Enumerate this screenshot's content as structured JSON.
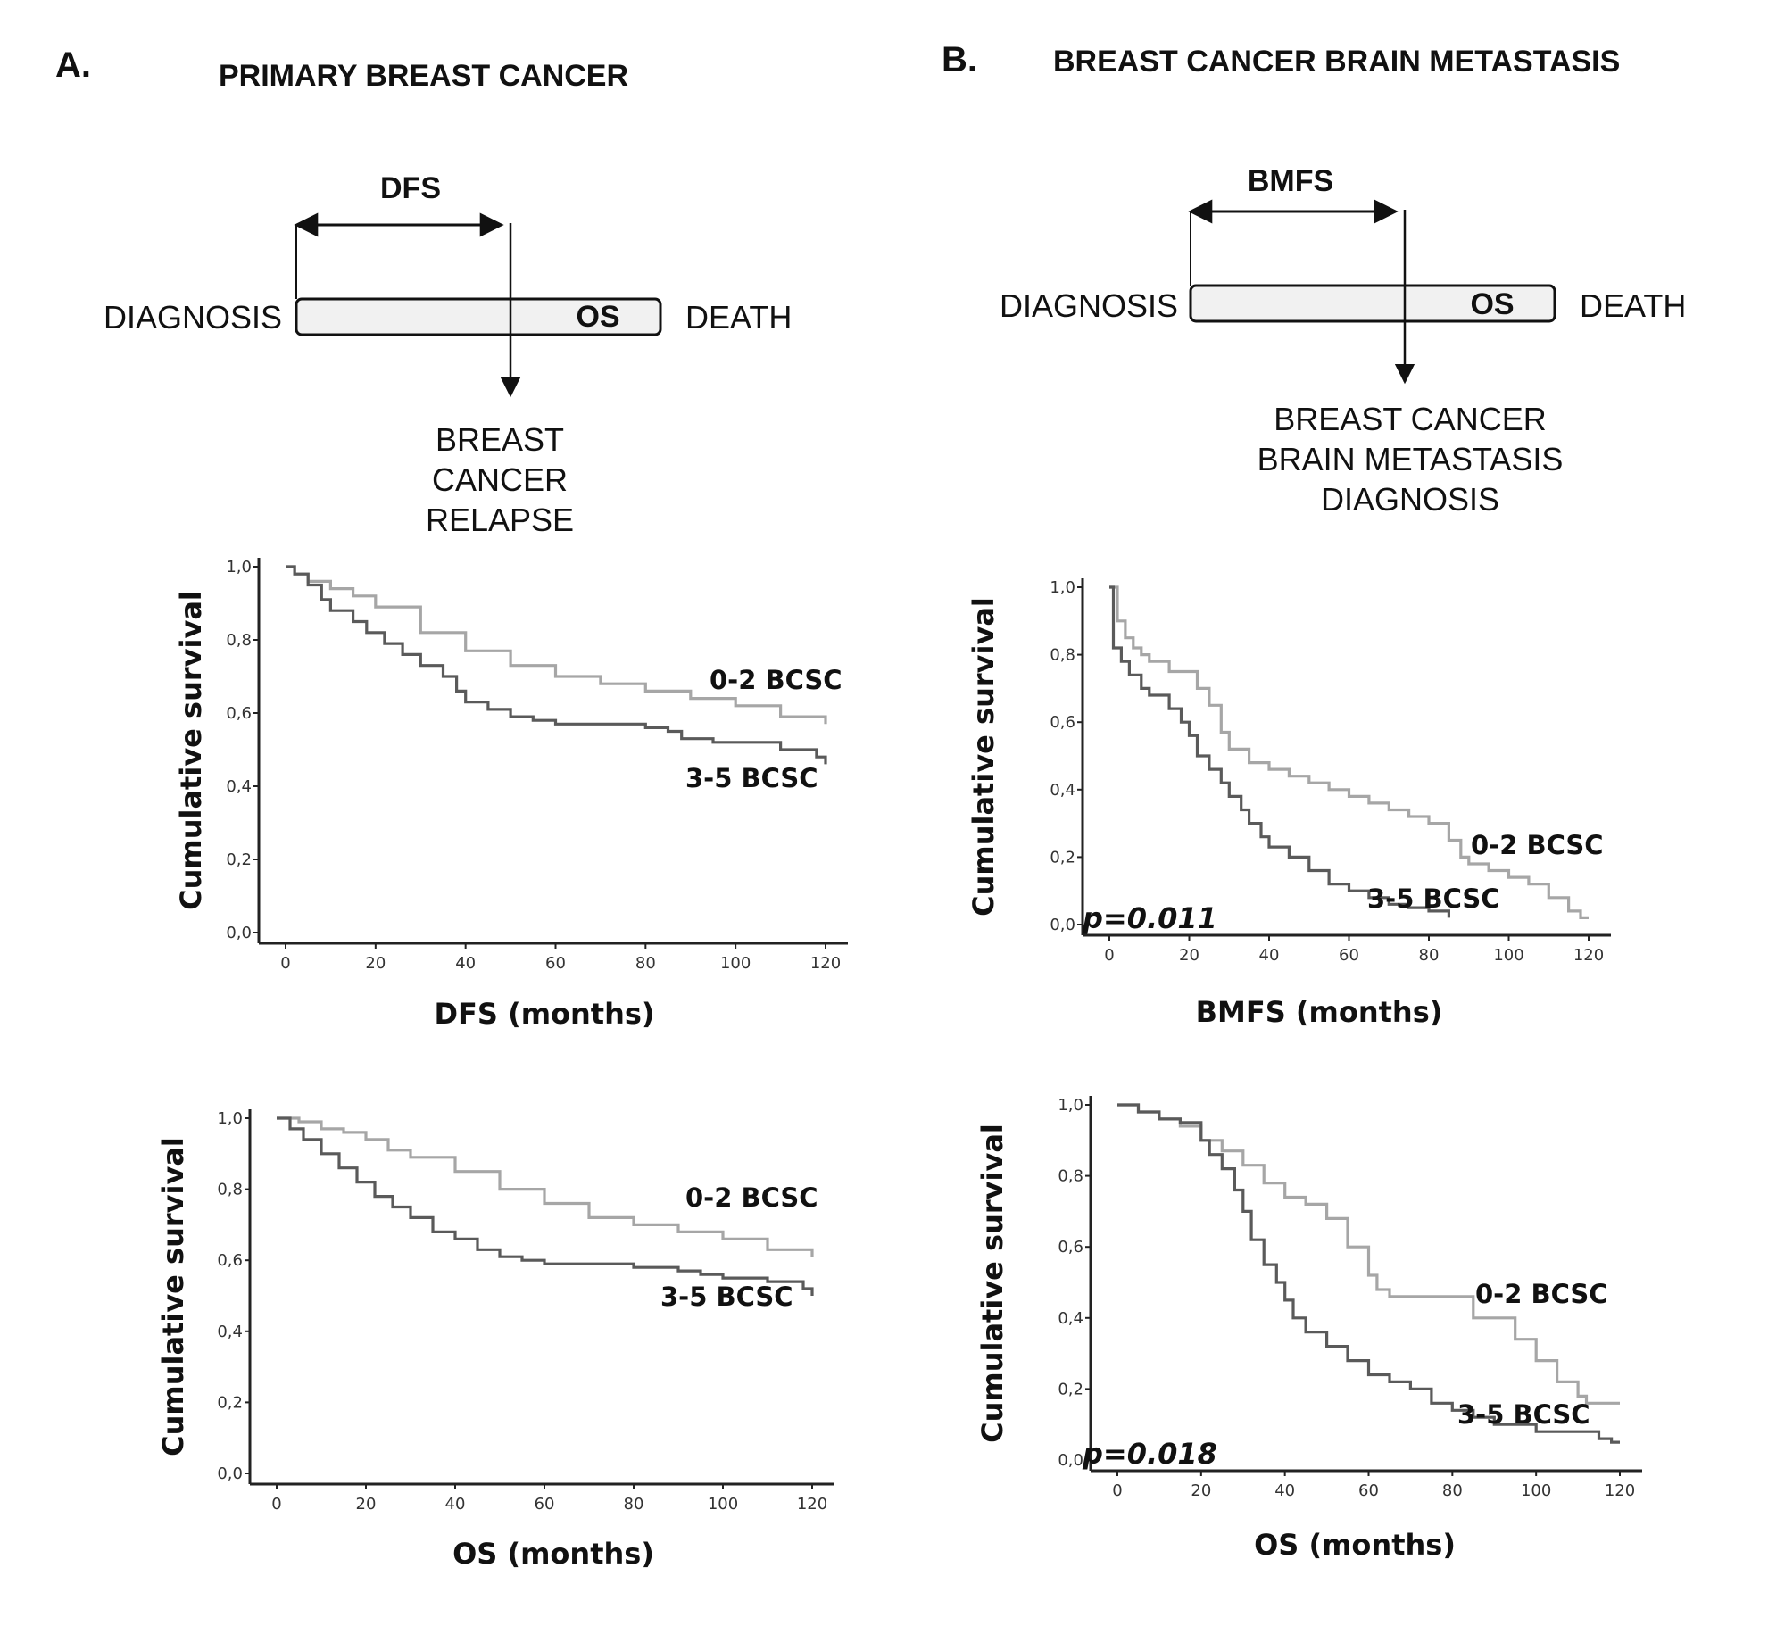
{
  "colors": {
    "light_series": "#a6a6a6",
    "dark_series": "#5a5a5a",
    "axis": "#222222",
    "box_fill": "#f1f1f1"
  },
  "panel_a": {
    "letter": "A.",
    "title": "PRIMARY BREAST CANCER",
    "schema": {
      "interval_label": "DFS",
      "start": "DIAGNOSIS",
      "bar_label": "OS",
      "end": "DEATH",
      "event_lines": [
        "BREAST",
        "CANCER",
        "RELAPSE"
      ]
    }
  },
  "panel_b": {
    "letter": "B.",
    "title": "BREAST CANCER BRAIN METASTASIS",
    "schema": {
      "interval_label": "BMFS",
      "start": "DIAGNOSIS",
      "bar_label": "OS",
      "end": "DEATH",
      "event_lines": [
        "BREAST CANCER",
        "BRAIN METASTASIS",
        "DIAGNOSIS"
      ]
    }
  },
  "chart_data": [
    {
      "id": "a_dfs",
      "type": "line",
      "title": "",
      "xlabel": "DFS (months)",
      "ylabel": "Cumulative survival",
      "xlim": [
        0,
        120
      ],
      "ylim": [
        0,
        1
      ],
      "xticks": [
        "0",
        "20",
        "40",
        "60",
        "80",
        "100",
        "120"
      ],
      "yticks": [
        "0,0",
        "0,2",
        "0,4",
        "0,6",
        "0,8",
        "1,0"
      ],
      "pvalue": "",
      "series": [
        {
          "name": "0-2 BCSC",
          "x": [
            0,
            2,
            5,
            10,
            15,
            20,
            30,
            40,
            50,
            60,
            70,
            80,
            90,
            100,
            110,
            120
          ],
          "y": [
            1.0,
            0.98,
            0.96,
            0.94,
            0.92,
            0.89,
            0.82,
            0.77,
            0.73,
            0.7,
            0.68,
            0.66,
            0.64,
            0.62,
            0.59,
            0.57
          ]
        },
        {
          "name": "3-5 BCSC",
          "x": [
            0,
            2,
            5,
            8,
            10,
            15,
            18,
            22,
            26,
            30,
            35,
            38,
            40,
            45,
            50,
            55,
            60,
            70,
            80,
            85,
            88,
            95,
            110,
            118,
            120
          ],
          "y": [
            1.0,
            0.98,
            0.95,
            0.91,
            0.88,
            0.85,
            0.82,
            0.79,
            0.76,
            0.73,
            0.7,
            0.66,
            0.63,
            0.61,
            0.59,
            0.58,
            0.57,
            0.57,
            0.56,
            0.55,
            0.53,
            0.52,
            0.5,
            0.48,
            0.46
          ]
        }
      ]
    },
    {
      "id": "a_os",
      "type": "line",
      "title": "",
      "xlabel": "OS (months)",
      "ylabel": "Cumulative survival",
      "xlim": [
        0,
        120
      ],
      "ylim": [
        0,
        1
      ],
      "xticks": [
        "0",
        "20",
        "40",
        "60",
        "80",
        "100",
        "120"
      ],
      "yticks": [
        "0,0",
        "0,2",
        "0,4",
        "0,6",
        "0,8",
        "1,0"
      ],
      "pvalue": "",
      "series": [
        {
          "name": "0-2 BCSC",
          "x": [
            0,
            5,
            10,
            15,
            20,
            25,
            30,
            40,
            50,
            60,
            70,
            80,
            90,
            100,
            110,
            120
          ],
          "y": [
            1.0,
            0.99,
            0.97,
            0.96,
            0.94,
            0.91,
            0.89,
            0.85,
            0.8,
            0.76,
            0.72,
            0.7,
            0.68,
            0.66,
            0.63,
            0.61
          ]
        },
        {
          "name": "3-5 BCSC",
          "x": [
            0,
            3,
            6,
            10,
            14,
            18,
            22,
            26,
            30,
            35,
            40,
            45,
            50,
            55,
            60,
            70,
            80,
            90,
            95,
            100,
            110,
            118,
            120
          ],
          "y": [
            1.0,
            0.97,
            0.94,
            0.9,
            0.86,
            0.82,
            0.78,
            0.75,
            0.72,
            0.68,
            0.66,
            0.63,
            0.61,
            0.6,
            0.59,
            0.59,
            0.58,
            0.57,
            0.56,
            0.55,
            0.54,
            0.52,
            0.5
          ]
        }
      ]
    },
    {
      "id": "b_bmfs",
      "type": "line",
      "title": "",
      "xlabel": "BMFS (months)",
      "ylabel": "Cumulative survival",
      "xlim": [
        0,
        120
      ],
      "ylim": [
        0,
        1
      ],
      "xticks": [
        "0",
        "20",
        "40",
        "60",
        "80",
        "100",
        "120"
      ],
      "yticks": [
        "0,0",
        "0,2",
        "0,4",
        "0,6",
        "0,8",
        "1,0"
      ],
      "pvalue": "p=0.011",
      "series": [
        {
          "name": "0-2 BCSC",
          "x": [
            0,
            2,
            4,
            6,
            8,
            10,
            15,
            20,
            22,
            25,
            28,
            30,
            35,
            40,
            45,
            50,
            55,
            60,
            65,
            70,
            75,
            80,
            85,
            88,
            90,
            95,
            100,
            105,
            110,
            115,
            118,
            120
          ],
          "y": [
            1.0,
            0.9,
            0.85,
            0.82,
            0.8,
            0.78,
            0.75,
            0.75,
            0.7,
            0.65,
            0.57,
            0.52,
            0.48,
            0.46,
            0.44,
            0.42,
            0.4,
            0.38,
            0.36,
            0.34,
            0.32,
            0.3,
            0.25,
            0.2,
            0.18,
            0.16,
            0.14,
            0.12,
            0.08,
            0.04,
            0.02,
            0.02
          ]
        },
        {
          "name": "3-5 BCSC",
          "x": [
            0,
            1,
            3,
            5,
            8,
            10,
            15,
            18,
            20,
            22,
            25,
            28,
            30,
            33,
            35,
            38,
            40,
            45,
            50,
            55,
            60,
            65,
            70,
            75,
            80,
            85
          ],
          "y": [
            1.0,
            0.82,
            0.78,
            0.74,
            0.7,
            0.68,
            0.64,
            0.6,
            0.56,
            0.5,
            0.46,
            0.42,
            0.38,
            0.34,
            0.3,
            0.26,
            0.23,
            0.2,
            0.16,
            0.12,
            0.1,
            0.08,
            0.06,
            0.05,
            0.04,
            0.02
          ]
        }
      ]
    },
    {
      "id": "b_os",
      "type": "line",
      "title": "",
      "xlabel": "OS (months)",
      "ylabel": "Cumulative survival",
      "xlim": [
        0,
        120
      ],
      "ylim": [
        0,
        1
      ],
      "xticks": [
        "0",
        "20",
        "40",
        "60",
        "80",
        "100",
        "120"
      ],
      "yticks": [
        "0,0",
        "0,2",
        "0,4",
        "0,6",
        "0,8",
        "1,0"
      ],
      "pvalue": "p=0.018",
      "series": [
        {
          "name": "0-2 BCSC",
          "x": [
            0,
            5,
            10,
            15,
            20,
            25,
            30,
            35,
            40,
            45,
            50,
            55,
            60,
            62,
            65,
            70,
            80,
            85,
            95,
            100,
            105,
            110,
            112,
            115,
            120
          ],
          "y": [
            1.0,
            0.98,
            0.96,
            0.94,
            0.9,
            0.87,
            0.83,
            0.78,
            0.74,
            0.72,
            0.68,
            0.6,
            0.52,
            0.48,
            0.46,
            0.46,
            0.46,
            0.4,
            0.34,
            0.28,
            0.22,
            0.18,
            0.16,
            0.16,
            0.16
          ]
        },
        {
          "name": "3-5 BCSC",
          "x": [
            0,
            5,
            10,
            15,
            20,
            22,
            25,
            28,
            30,
            32,
            35,
            38,
            40,
            42,
            45,
            50,
            55,
            60,
            65,
            70,
            75,
            80,
            85,
            90,
            100,
            110,
            115,
            118,
            120
          ],
          "y": [
            1.0,
            0.98,
            0.96,
            0.95,
            0.9,
            0.86,
            0.82,
            0.76,
            0.7,
            0.62,
            0.55,
            0.5,
            0.45,
            0.4,
            0.36,
            0.32,
            0.28,
            0.24,
            0.22,
            0.2,
            0.16,
            0.14,
            0.12,
            0.1,
            0.08,
            0.08,
            0.06,
            0.05,
            0.05
          ]
        }
      ]
    }
  ]
}
